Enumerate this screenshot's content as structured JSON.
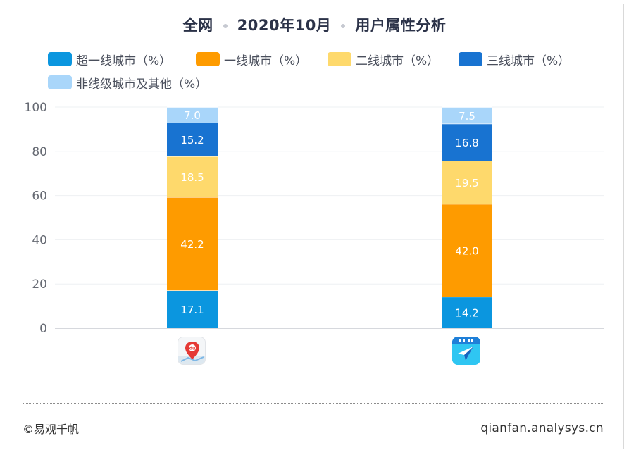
{
  "title": {
    "part1": "全网",
    "part2": "2020年10月",
    "part3": "用户属性分析"
  },
  "chart_data": {
    "type": "bar",
    "stacked": true,
    "categories": [
      "",
      ""
    ],
    "category_icons": [
      "baidu-maps-app-icon",
      "navigation-app-icon"
    ],
    "ylim": [
      0,
      100
    ],
    "yticks": [
      "0",
      "20",
      "40",
      "60",
      "80",
      "100"
    ],
    "grid": true,
    "legend_position": "top",
    "series": [
      {
        "name": "超一线城市（%）",
        "color": "#0b96df",
        "values": [
          17.1,
          14.2
        ],
        "labels": [
          "17.1",
          "14.2"
        ]
      },
      {
        "name": "一线城市（%）",
        "color": "#fe9b00",
        "values": [
          42.2,
          42.0
        ],
        "labels": [
          "42.2",
          "42.0"
        ]
      },
      {
        "name": "二线城市（%）",
        "color": "#fed96c",
        "values": [
          18.5,
          19.5
        ],
        "labels": [
          "18.5",
          "19.5"
        ]
      },
      {
        "name": "三线城市（%）",
        "color": "#1873d1",
        "values": [
          15.2,
          16.8
        ],
        "labels": [
          "15.2",
          "16.8"
        ]
      },
      {
        "name": "非线级城市及其他（%）",
        "color": "#a9d6fa",
        "values": [
          7.0,
          7.5
        ],
        "labels": [
          "7.0",
          "7.5"
        ]
      }
    ]
  },
  "footer": {
    "source": "©易观千帆",
    "site": "qianfan.analysys.cn"
  }
}
